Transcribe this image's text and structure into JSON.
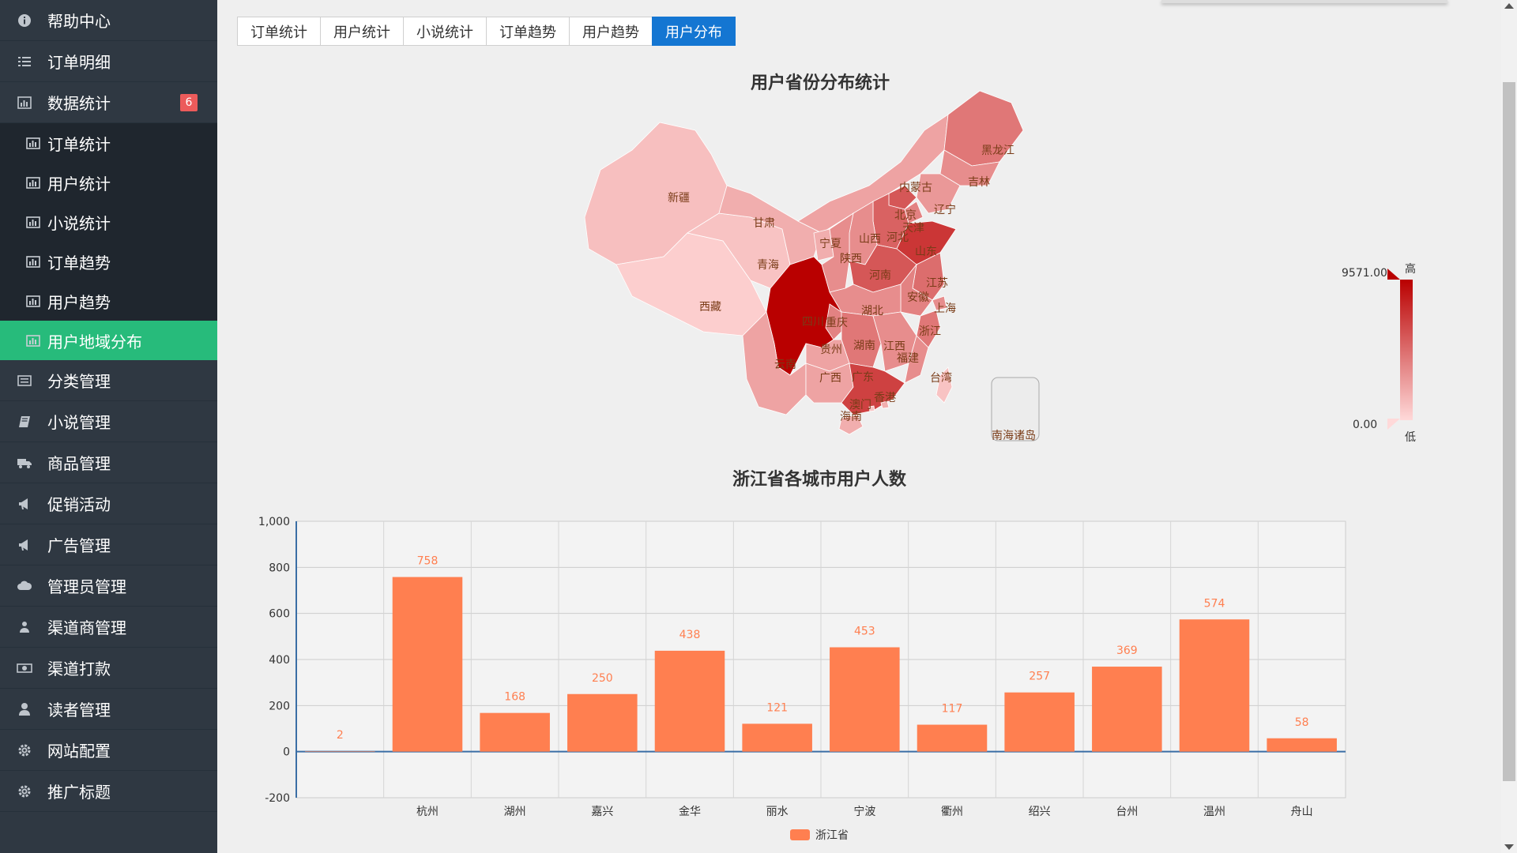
{
  "sidebar": {
    "items_top": [
      {
        "label": "帮助中心",
        "icon": "info-icon"
      },
      {
        "label": "订单明细",
        "icon": "list-icon"
      },
      {
        "label": "数据统计",
        "icon": "bar-chart-icon",
        "badge": "6"
      }
    ],
    "sub_items": [
      {
        "label": "订单统计"
      },
      {
        "label": "用户统计"
      },
      {
        "label": "小说统计"
      },
      {
        "label": "订单趋势"
      },
      {
        "label": "用户趋势"
      },
      {
        "label": "用户地域分布",
        "active": true
      }
    ],
    "items_bottom": [
      {
        "label": "分类管理",
        "icon": "category-icon"
      },
      {
        "label": "小说管理",
        "icon": "book-icon"
      },
      {
        "label": "商品管理",
        "icon": "truck-icon"
      },
      {
        "label": "促销活动",
        "icon": "bullhorn-icon"
      },
      {
        "label": "广告管理",
        "icon": "bullhorn-icon"
      },
      {
        "label": "管理员管理",
        "icon": "cloud-icon"
      },
      {
        "label": "渠道商管理",
        "icon": "user-group-icon"
      },
      {
        "label": "渠道打款",
        "icon": "money-icon"
      },
      {
        "label": "读者管理",
        "icon": "user-icon"
      },
      {
        "label": "网站配置",
        "icon": "gear-icon"
      },
      {
        "label": "推广标题",
        "icon": "gear-icon"
      }
    ]
  },
  "tabs": [
    {
      "label": "订单统计"
    },
    {
      "label": "用户统计"
    },
    {
      "label": "小说统计"
    },
    {
      "label": "订单趋势"
    },
    {
      "label": "用户趋势"
    },
    {
      "label": "用户分布",
      "active": true
    }
  ],
  "map": {
    "title": "用户省份分布统计",
    "visual_map": {
      "max_label": "9571.00",
      "min_label": "0.00",
      "high": "高",
      "low": "低",
      "color_high": "#b90000",
      "color_low": "#ffd9d9"
    },
    "provinces": [
      {
        "name": "新疆",
        "level": 0.12
      },
      {
        "name": "西藏",
        "level": 0.05
      },
      {
        "name": "青海",
        "level": 0.1
      },
      {
        "name": "甘肃",
        "level": 0.2
      },
      {
        "name": "内蒙古",
        "level": 0.25
      },
      {
        "name": "黑龙江",
        "level": 0.45
      },
      {
        "name": "吉林",
        "level": 0.35
      },
      {
        "name": "辽宁",
        "level": 0.3
      },
      {
        "name": "北京",
        "level": 0.6
      },
      {
        "name": "天津",
        "level": 0.4
      },
      {
        "name": "河北",
        "level": 0.55
      },
      {
        "name": "山西",
        "level": 0.35
      },
      {
        "name": "宁夏",
        "level": 0.2
      },
      {
        "name": "陕西",
        "level": 0.35
      },
      {
        "name": "山东",
        "level": 0.75
      },
      {
        "name": "河南",
        "level": 0.6
      },
      {
        "name": "江苏",
        "level": 0.5
      },
      {
        "name": "安徽",
        "level": 0.4
      },
      {
        "name": "上海",
        "level": 0.35
      },
      {
        "name": "湖北",
        "level": 0.35
      },
      {
        "name": "四川",
        "level": 1.0
      },
      {
        "name": "重庆",
        "level": 0.4
      },
      {
        "name": "浙江",
        "level": 0.45
      },
      {
        "name": "湖南",
        "level": 0.45
      },
      {
        "name": "江西",
        "level": 0.35
      },
      {
        "name": "贵州",
        "level": 0.25
      },
      {
        "name": "福建",
        "level": 0.35
      },
      {
        "name": "云南",
        "level": 0.25
      },
      {
        "name": "广西",
        "level": 0.25
      },
      {
        "name": "广东",
        "level": 0.7
      },
      {
        "name": "台湾",
        "level": 0.1
      },
      {
        "name": "香港",
        "level": 0.2
      },
      {
        "name": "澳门",
        "level": 0.1
      },
      {
        "name": "海南",
        "level": 0.2
      }
    ],
    "south_sea_label": "南海诸岛"
  },
  "chart_data": {
    "type": "bar",
    "title": "浙江省各城市用户人数",
    "categories": [
      "",
      "杭州",
      "湖州",
      "嘉兴",
      "金华",
      "丽水",
      "宁波",
      "衢州",
      "绍兴",
      "台州",
      "温州",
      "舟山"
    ],
    "series": [
      {
        "name": "浙江省",
        "values": [
          2,
          758,
          168,
          250,
          438,
          121,
          453,
          117,
          257,
          369,
          574,
          58
        ]
      }
    ],
    "ylim": [
      -200,
      1000
    ],
    "yticks": [
      "-200",
      "0",
      "200",
      "400",
      "600",
      "800",
      "1,000"
    ],
    "grid": true,
    "legend": "bottom-center",
    "bar_color": "#ff7f50"
  }
}
